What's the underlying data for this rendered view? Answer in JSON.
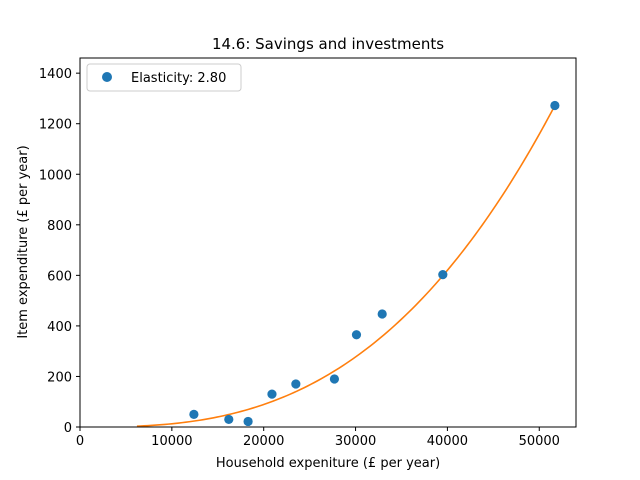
{
  "chart_data": {
    "type": "scatter",
    "title": "14.6: Savings and investments",
    "xlabel": "Household expeniture (£ per year)",
    "ylabel": "Item expenditure (£ per year)",
    "xlim": [
      0,
      54000
    ],
    "ylim": [
      0,
      1460
    ],
    "xticks": [
      0,
      10000,
      20000,
      30000,
      40000,
      50000
    ],
    "yticks": [
      0,
      200,
      400,
      600,
      800,
      1000,
      1200,
      1400
    ],
    "grid": false,
    "legend_position": "top-left",
    "series": [
      {
        "name": "Elasticity: 2.80",
        "type": "scatter",
        "color": "#1f77b4",
        "x": [
          12400,
          16200,
          18300,
          20900,
          23500,
          27700,
          30100,
          32900,
          39500,
          51700
        ],
        "y": [
          50,
          30,
          22,
          130,
          170,
          190,
          365,
          447,
          603,
          1272
        ]
      },
      {
        "type": "line",
        "color": "#ff7f0e",
        "elasticity": 2.8,
        "x_range": [
          6200,
          51700
        ],
        "anchor": {
          "x": 51700,
          "y": 1272
        }
      }
    ]
  }
}
